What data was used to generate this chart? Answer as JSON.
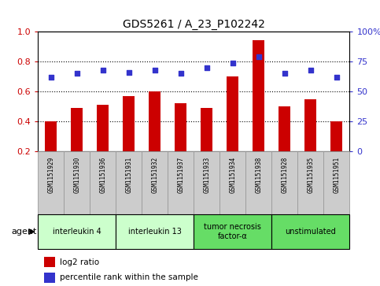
{
  "title": "GDS5261 / A_23_P102242",
  "samples": [
    "GSM1151929",
    "GSM1151930",
    "GSM1151936",
    "GSM1151931",
    "GSM1151932",
    "GSM1151937",
    "GSM1151933",
    "GSM1151934",
    "GSM1151938",
    "GSM1151928",
    "GSM1151935",
    "GSM1151951"
  ],
  "log2_ratio": [
    0.4,
    0.49,
    0.51,
    0.57,
    0.6,
    0.52,
    0.49,
    0.7,
    0.94,
    0.5,
    0.55,
    0.4
  ],
  "percentile_rank": [
    62,
    65,
    68,
    66,
    68,
    65,
    70,
    74,
    79,
    65,
    68,
    62
  ],
  "bar_color": "#cc0000",
  "dot_color": "#3333cc",
  "ylim_left": [
    0.2,
    1.0
  ],
  "ylim_right": [
    0,
    100
  ],
  "yticks_left": [
    0.2,
    0.4,
    0.6,
    0.8,
    1.0
  ],
  "yticks_right": [
    0,
    25,
    50,
    75,
    100
  ],
  "ytick_labels_right": [
    "0",
    "25",
    "50",
    "75",
    "100%"
  ],
  "gridlines": [
    0.4,
    0.6,
    0.8
  ],
  "agents": [
    {
      "label": "interleukin 4",
      "start": 0,
      "end": 3,
      "color": "#ccffcc"
    },
    {
      "label": "interleukin 13",
      "start": 3,
      "end": 6,
      "color": "#ccffcc"
    },
    {
      "label": "tumor necrosis\nfactor-α",
      "start": 6,
      "end": 9,
      "color": "#66dd66"
    },
    {
      "label": "unstimulated",
      "start": 9,
      "end": 12,
      "color": "#66dd66"
    }
  ],
  "legend_log2": "log2 ratio",
  "legend_pct": "percentile rank within the sample",
  "agent_label": "agent",
  "left_tick_color": "#cc0000",
  "right_tick_color": "#3333cc",
  "sample_box_color": "#cccccc",
  "sample_box_edge": "#999999",
  "title_fontsize": 10,
  "bar_width": 0.45
}
